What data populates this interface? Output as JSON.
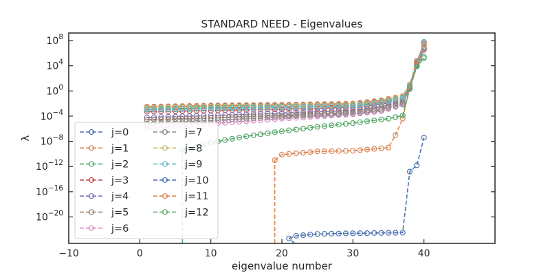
{
  "chart_data": {
    "type": "line",
    "title": "STANDARD NEED - Eigenvalues",
    "xlabel": "eigenvalue number",
    "ylabel": "λ",
    "xlim": [
      -10,
      50
    ],
    "ylim_log10": [
      -24.2,
      9.2
    ],
    "y_scale": "log",
    "x_ticks": [
      -10,
      0,
      10,
      20,
      30,
      40
    ],
    "x_tick_labels": [
      "−10",
      "0",
      "10",
      "20",
      "30",
      "40"
    ],
    "y_ticks_log10": [
      8,
      4,
      0,
      -4,
      -8,
      -12,
      -16,
      -20
    ],
    "y_tick_labels": {
      "base": "10",
      "exponents": [
        "8",
        "4",
        "0",
        "−4",
        "−8",
        "−12",
        "−16",
        "−20"
      ]
    },
    "legend_position": "lower-left",
    "grid": false,
    "series": [
      {
        "name": "j=0",
        "color": "#4c72b0",
        "log10": {
          "x1": 1,
          "x2": 40,
          "pts": [
            [
              1,
              -2.6
            ],
            [
              10,
              -2.4
            ],
            [
              20,
              -2.3
            ],
            [
              30,
              -2.1
            ],
            [
              34,
              -1.6
            ],
            [
              37,
              -0.9
            ],
            [
              38,
              0.9
            ],
            [
              39,
              4.6
            ],
            [
              40,
              7.6
            ]
          ]
        }
      },
      {
        "name": "j=1",
        "color": "#dd8452",
        "log10": {
          "x1": 1,
          "x2": 40,
          "pts": [
            [
              1,
              -2.5
            ],
            [
              10,
              -2.3
            ],
            [
              20,
              -2.2
            ],
            [
              30,
              -2.0
            ],
            [
              34,
              -1.5
            ],
            [
              37,
              -0.8
            ],
            [
              38,
              1.0
            ],
            [
              39,
              4.8
            ],
            [
              40,
              6.5
            ]
          ]
        }
      },
      {
        "name": "j=2",
        "color": "#55a868",
        "log10": {
          "x1": 1,
          "x2": 40,
          "pts": [
            [
              1,
              -2.9
            ],
            [
              10,
              -2.7
            ],
            [
              20,
              -2.5
            ],
            [
              30,
              -2.3
            ],
            [
              34,
              -1.8
            ],
            [
              37,
              -1.0
            ],
            [
              38,
              0.8
            ],
            [
              39,
              4.4
            ],
            [
              40,
              5.4
            ]
          ]
        }
      },
      {
        "name": "j=3",
        "color": "#c44e52",
        "log10": {
          "x1": 1,
          "x2": 40,
          "pts": [
            [
              1,
              -3.3
            ],
            [
              10,
              -3.1
            ],
            [
              20,
              -2.9
            ],
            [
              30,
              -2.6
            ],
            [
              34,
              -2.1
            ],
            [
              37,
              -1.3
            ],
            [
              38,
              0.7
            ],
            [
              39,
              4.3
            ],
            [
              40,
              7.3
            ]
          ]
        }
      },
      {
        "name": "j=4",
        "color": "#8172b3",
        "log10": {
          "x1": 1,
          "x2": 40,
          "pts": [
            [
              1,
              -4.2
            ],
            [
              10,
              -3.9
            ],
            [
              20,
              -3.5
            ],
            [
              30,
              -3.1
            ],
            [
              34,
              -2.5
            ],
            [
              37,
              -1.6
            ],
            [
              38,
              0.6
            ],
            [
              39,
              4.2
            ],
            [
              40,
              7.0
            ]
          ]
        }
      },
      {
        "name": "j=5",
        "color": "#937860",
        "log10": {
          "x1": 1,
          "x2": 40,
          "pts": [
            [
              1,
              -4.6
            ],
            [
              10,
              -4.3
            ],
            [
              20,
              -3.9
            ],
            [
              30,
              -3.4
            ],
            [
              34,
              -2.8
            ],
            [
              37,
              -1.9
            ],
            [
              38,
              0.5
            ],
            [
              39,
              4.1
            ],
            [
              40,
              6.8
            ]
          ]
        }
      },
      {
        "name": "j=6",
        "color": "#da8bc3",
        "log10": {
          "x1": 1,
          "x2": 40,
          "pts": [
            [
              1,
              -6.0
            ],
            [
              10,
              -5.2
            ],
            [
              20,
              -4.4
            ],
            [
              30,
              -3.7
            ],
            [
              34,
              -3.2
            ],
            [
              37,
              -2.2
            ],
            [
              38,
              0.4
            ],
            [
              39,
              4.0
            ],
            [
              40,
              6.6
            ]
          ]
        }
      },
      {
        "name": "j=7",
        "color": "#8c8c8c",
        "log10": {
          "x1": 1,
          "x2": 40,
          "pts": [
            [
              1,
              -5.2
            ],
            [
              10,
              -4.7
            ],
            [
              20,
              -4.1
            ],
            [
              30,
              -3.6
            ],
            [
              34,
              -3.0
            ],
            [
              37,
              -2.1
            ],
            [
              38,
              0.4
            ],
            [
              39,
              4.0
            ],
            [
              40,
              6.7
            ]
          ]
        }
      },
      {
        "name": "j=8",
        "color": "#ccb974",
        "log10": {
          "x1": 1,
          "x2": 40,
          "pts": [
            [
              1,
              -2.7
            ],
            [
              10,
              -2.5
            ],
            [
              20,
              -2.4
            ],
            [
              30,
              -2.2
            ],
            [
              34,
              -1.7
            ],
            [
              37,
              -0.9
            ],
            [
              38,
              0.9
            ],
            [
              39,
              4.5
            ],
            [
              40,
              7.2
            ]
          ]
        }
      },
      {
        "name": "j=9",
        "color": "#64b5cd",
        "log10": {
          "x1": 1,
          "x2": 40,
          "pts": [
            [
              1,
              -3.0
            ],
            [
              10,
              -2.8
            ],
            [
              20,
              -2.6
            ],
            [
              30,
              -2.4
            ],
            [
              34,
              -1.9
            ],
            [
              37,
              -1.1
            ],
            [
              38,
              0.8
            ],
            [
              39,
              4.4
            ],
            [
              40,
              7.8
            ]
          ]
        }
      },
      {
        "name": "j=10",
        "color": "#4c72b0",
        "log10": {
          "x1": 21,
          "x2": 40,
          "pts": [
            [
              21,
              -23.4
            ],
            [
              22,
              -23.0
            ],
            [
              25,
              -22.7
            ],
            [
              30,
              -22.6
            ],
            [
              37,
              -22.5
            ],
            [
              38,
              -12.8
            ],
            [
              39,
              -11.8
            ],
            [
              40,
              -7.4
            ]
          ],
          "ext": [
            [
              21.8,
              -24.2
            ],
            [
              21,
              -23.4
            ]
          ]
        }
      },
      {
        "name": "j=11",
        "color": "#dd8452",
        "log10": {
          "x1": 19,
          "x2": 40,
          "pts": [
            [
              19,
              -11.0
            ],
            [
              20,
              -10.1
            ],
            [
              25,
              -9.6
            ],
            [
              30,
              -9.5
            ],
            [
              35,
              -9.0
            ],
            [
              36,
              -7.0
            ],
            [
              37,
              -4.4
            ],
            [
              38,
              0.6
            ],
            [
              39,
              4.5
            ],
            [
              40,
              7.5
            ]
          ],
          "ext": [
            [
              19,
              -24.2
            ],
            [
              19,
              -11.0
            ]
          ]
        }
      },
      {
        "name": "j=12",
        "color": "#55a868",
        "log10": {
          "x1": 6,
          "x2": 40,
          "pts": [
            [
              6,
              -9.3
            ],
            [
              7,
              -9.2
            ],
            [
              10,
              -8.2
            ],
            [
              15,
              -7.2
            ],
            [
              20,
              -6.4
            ],
            [
              25,
              -5.7
            ],
            [
              30,
              -5.1
            ],
            [
              35,
              -4.4
            ],
            [
              37,
              -3.9
            ],
            [
              38,
              0.3
            ],
            [
              39,
              3.9
            ],
            [
              40,
              5.2
            ]
          ],
          "ext": [
            [
              6,
              -24.2
            ],
            [
              6,
              -9.3
            ]
          ]
        }
      }
    ]
  }
}
